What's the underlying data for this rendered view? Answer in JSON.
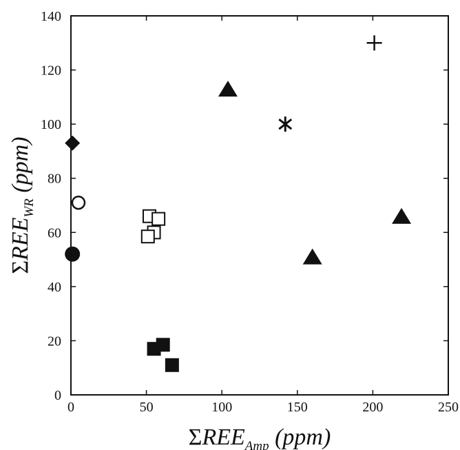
{
  "chart_data": {
    "type": "scatter",
    "title": "",
    "xlabel": {
      "prefix": "Σ",
      "main": "REE",
      "sub": "Amp",
      "suffix": " (ppm)"
    },
    "ylabel": {
      "prefix": "Σ",
      "main": "REE",
      "sub": "WR",
      "suffix": " (ppm)"
    },
    "xlim": [
      0,
      250
    ],
    "ylim": [
      0,
      140
    ],
    "xticks": [
      0,
      50,
      100,
      150,
      200,
      250
    ],
    "yticks": [
      0,
      20,
      40,
      60,
      80,
      100,
      120,
      140
    ],
    "grid": false,
    "legend": "none",
    "series": [
      {
        "marker": "diamond-filled",
        "points": [
          [
            1,
            93
          ]
        ]
      },
      {
        "marker": "circle-open",
        "points": [
          [
            5,
            71
          ]
        ]
      },
      {
        "marker": "circle-filled",
        "points": [
          [
            1,
            52
          ]
        ]
      },
      {
        "marker": "square-open",
        "points": [
          [
            52,
            66
          ],
          [
            58,
            65
          ],
          [
            55,
            60
          ],
          [
            51,
            58.5
          ]
        ]
      },
      {
        "marker": "square-filled",
        "points": [
          [
            55,
            17
          ],
          [
            61,
            18.5
          ],
          [
            67,
            11
          ]
        ]
      },
      {
        "marker": "triangle-filled",
        "points": [
          [
            104,
            113
          ],
          [
            160,
            51
          ],
          [
            219,
            66
          ]
        ]
      },
      {
        "marker": "asterisk",
        "points": [
          [
            142,
            100
          ]
        ]
      },
      {
        "marker": "plus",
        "points": [
          [
            201,
            130
          ]
        ]
      }
    ]
  }
}
